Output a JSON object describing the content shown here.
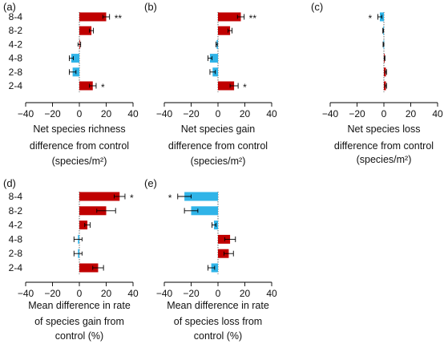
{
  "colors": {
    "increase": "#C00000",
    "decrease": "#30B4E8",
    "axis": "#000000",
    "errorbar": "#000000"
  },
  "chart_data": [
    {
      "panel": "(a)",
      "type": "bar",
      "orientation": "horizontal",
      "categories": [
        "8-4",
        "8-2",
        "4-2",
        "4-8",
        "2-8",
        "2-4"
      ],
      "values": [
        20,
        9,
        0,
        -6,
        -5,
        10
      ],
      "errors": [
        2.5,
        1.5,
        1,
        1.5,
        2.5,
        2.5
      ],
      "significance": [
        "**",
        "",
        "",
        "",
        "",
        "*"
      ],
      "xlim": [
        -40,
        40
      ],
      "xticks": [
        -40,
        -20,
        0,
        20,
        40
      ],
      "xticklabels": [
        "−40",
        "−20",
        "0",
        "20",
        "40"
      ],
      "xlabel_lines": [
        "Net species richness",
        "difference from control",
        "(species/m²)"
      ]
    },
    {
      "panel": "(b)",
      "type": "bar",
      "orientation": "horizontal",
      "categories": [
        "8-4",
        "8-2",
        "4-2",
        "4-8",
        "2-8",
        "2-4"
      ],
      "values": [
        17,
        9,
        -1,
        -6,
        -4,
        12
      ],
      "errors": [
        2.5,
        1.5,
        0.5,
        1.5,
        2,
        3
      ],
      "significance": [
        "**",
        "",
        "",
        "",
        "",
        "*"
      ],
      "xlim": [
        -40,
        40
      ],
      "xticks": [
        -40,
        -20,
        0,
        20,
        40
      ],
      "xticklabels": [
        "−40",
        "−20",
        "0",
        "20",
        "40"
      ],
      "xlabel_lines": [
        "Net species gain",
        "difference from control",
        "(species/m²)"
      ]
    },
    {
      "panel": "(c)",
      "type": "bar",
      "orientation": "horizontal",
      "categories": [
        "8-4",
        "8-2",
        "4-2",
        "4-8",
        "2-8",
        "2-4"
      ],
      "values": [
        -3,
        -0.5,
        -0.3,
        0.5,
        1.5,
        1.5
      ],
      "errors": [
        1.5,
        0.3,
        0.3,
        0.3,
        0.5,
        0.5
      ],
      "significance": [
        "*",
        "",
        "",
        "",
        "",
        ""
      ],
      "xlim": [
        -40,
        40
      ],
      "xticks": [
        -40,
        -20,
        0,
        20,
        40
      ],
      "xticklabels": [
        "−40",
        "−20",
        "0",
        "20",
        "40"
      ],
      "xlabel_lines": [
        "Net species loss",
        "difference from control",
        "(species/m²)"
      ]
    },
    {
      "panel": "(d)",
      "type": "bar",
      "orientation": "horizontal",
      "categories": [
        "8-4",
        "8-2",
        "4-2",
        "4-8",
        "2-8",
        "2-4"
      ],
      "values": [
        30,
        20,
        6,
        -1,
        -1,
        14
      ],
      "errors": [
        4,
        7,
        2,
        3,
        3,
        4
      ],
      "significance": [
        "*",
        "",
        "",
        "",
        "",
        ""
      ],
      "xlim": [
        -40,
        40
      ],
      "xticks": [
        -40,
        -20,
        0,
        20,
        40
      ],
      "xticklabels": [
        "−40",
        "−20",
        "0",
        "20",
        "40"
      ],
      "xlabel_lines": [
        "Mean difference in rate",
        "of species gain from",
        "control (%)"
      ]
    },
    {
      "panel": "(e)",
      "type": "bar",
      "orientation": "horizontal",
      "categories": [
        "8-4",
        "8-2",
        "4-2",
        "4-8",
        "2-8",
        "2-4"
      ],
      "values": [
        -25,
        -20,
        -3,
        9,
        8,
        -5
      ],
      "errors": [
        5,
        5,
        1.5,
        4,
        3.5,
        2.5
      ],
      "significance": [
        "*",
        "",
        "",
        "",
        "",
        ""
      ],
      "xlim": [
        -40,
        40
      ],
      "xticks": [
        -40,
        -20,
        0,
        20,
        40
      ],
      "xticklabels": [
        "−40",
        "−20",
        "0",
        "20",
        "40"
      ],
      "xlabel_lines": [
        "Mean difference in rate",
        "of species loss from",
        "control (%)"
      ]
    }
  ]
}
